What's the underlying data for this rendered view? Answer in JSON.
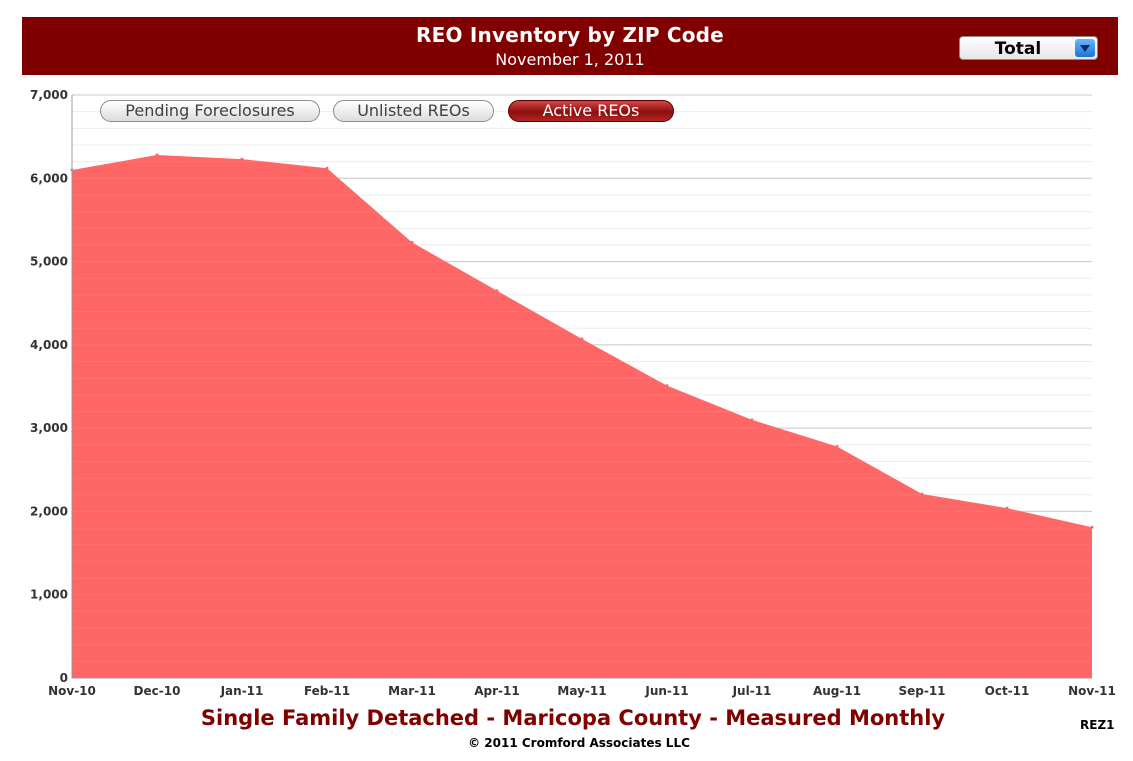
{
  "header": {
    "title": "REO Inventory by ZIP Code",
    "subtitle": "November 1, 2011"
  },
  "dropdown": {
    "selected": "Total"
  },
  "toggles": [
    {
      "label": "Pending Foreclosures",
      "active": false
    },
    {
      "label": "Unlisted REOs",
      "active": false
    },
    {
      "label": "Active REOs",
      "active": true
    }
  ],
  "chart_data": {
    "type": "area",
    "categories": [
      "Nov-10",
      "Dec-10",
      "Jan-11",
      "Feb-11",
      "Mar-11",
      "Apr-11",
      "May-11",
      "Jun-11",
      "Jul-11",
      "Aug-11",
      "Sep-11",
      "Oct-11",
      "Nov-11"
    ],
    "values": [
      6100,
      6280,
      6230,
      6120,
      5230,
      4650,
      4070,
      3510,
      3100,
      2780,
      2210,
      2040,
      1810
    ],
    "y_ticks": [
      "0",
      "1,000",
      "2,000",
      "3,000",
      "4,000",
      "5,000",
      "6,000",
      "7,000"
    ],
    "ylim": [
      0,
      7000
    ],
    "grid": true,
    "fill_color": "#ff6666",
    "title": "Single Family Detached - Maricopa County - Measured Monthly"
  },
  "footer": {
    "copyright": "© 2011 Cromford Associates LLC",
    "code": "REZ1"
  },
  "colors": {
    "header_bg": "#800000",
    "area": "#ff6666",
    "active_toggle": "#a31515"
  }
}
